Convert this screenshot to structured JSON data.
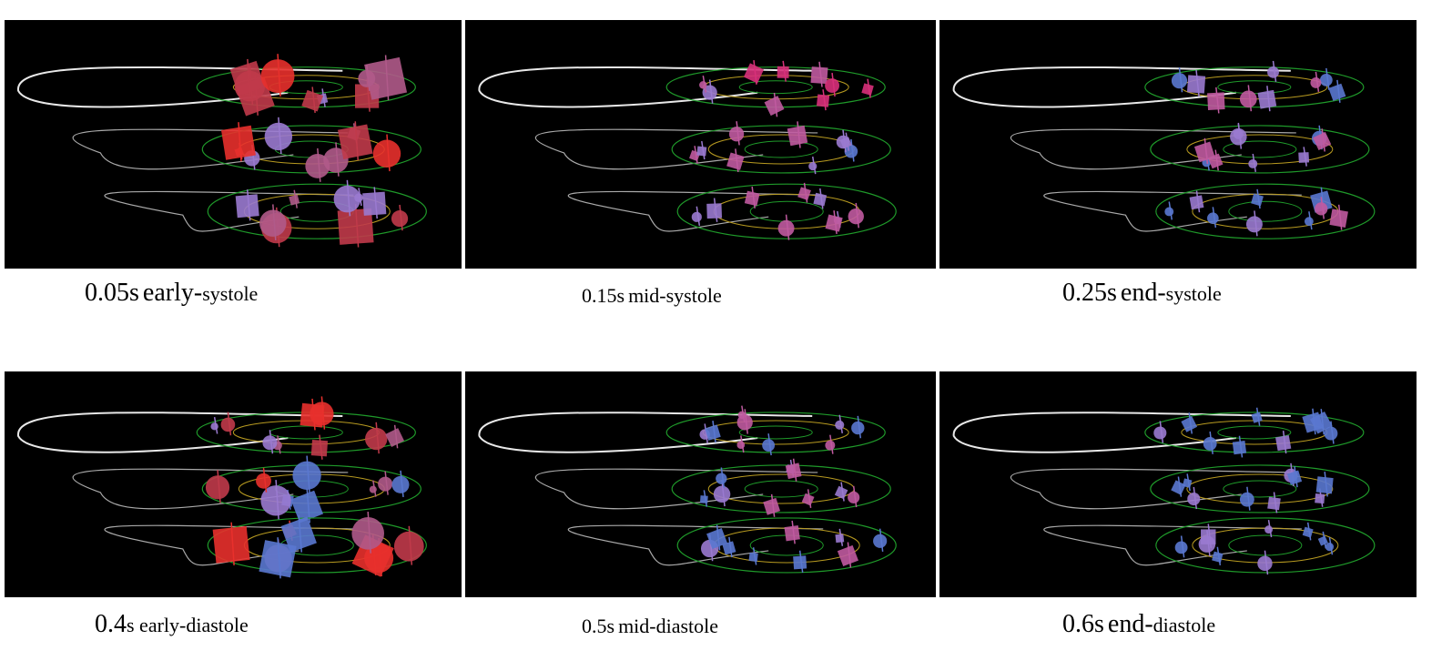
{
  "panels": [
    {
      "caption_time": "0.05s",
      "caption_phase_big": "early-",
      "caption_phase_small": "systole",
      "state": "early-systole",
      "glyph_colors": [
        "#e8302c",
        "#c03a4a",
        "#b05a8a",
        "#9a7ad0"
      ]
    },
    {
      "caption_time": "0.15s",
      "caption_phase_big": "",
      "caption_phase_small": "mid-systole",
      "state": "mid-systole",
      "glyph_colors": [
        "#d8307a",
        "#c05aa0",
        "#9a7ad0",
        "#5a78d0"
      ]
    },
    {
      "caption_time": "0.25s",
      "caption_phase_big": "end-",
      "caption_phase_small": "systole",
      "state": "end-systole",
      "glyph_colors": [
        "#c05aa0",
        "#9a7ad0",
        "#5a78d0"
      ]
    },
    {
      "caption_time": "0.4",
      "caption_phase_big": "",
      "caption_phase_small": "s early-diastole",
      "state": "early-diastole",
      "glyph_colors": [
        "#e8302c",
        "#c03a4a",
        "#b05a8a",
        "#9a7ad0",
        "#5a78d0"
      ]
    },
    {
      "caption_time": "0.5s",
      "caption_phase_big": "",
      "caption_phase_small": "mid-diastole",
      "state": "mid-diastole",
      "glyph_colors": [
        "#c05aa0",
        "#9a7ad0",
        "#5a78d0"
      ]
    },
    {
      "caption_time": "0.6s",
      "caption_phase_big": "end-",
      "caption_phase_small": "diastole",
      "state": "end-diastole",
      "glyph_colors": [
        "#9a7ad0",
        "#5a78d0"
      ]
    }
  ],
  "colors": {
    "background": "#000000",
    "outline_white": "#e8e8e8",
    "outline_grey": "#aaaaaa",
    "ring_green": "#1f9a2a",
    "ring_yellow": "#b79a20"
  }
}
